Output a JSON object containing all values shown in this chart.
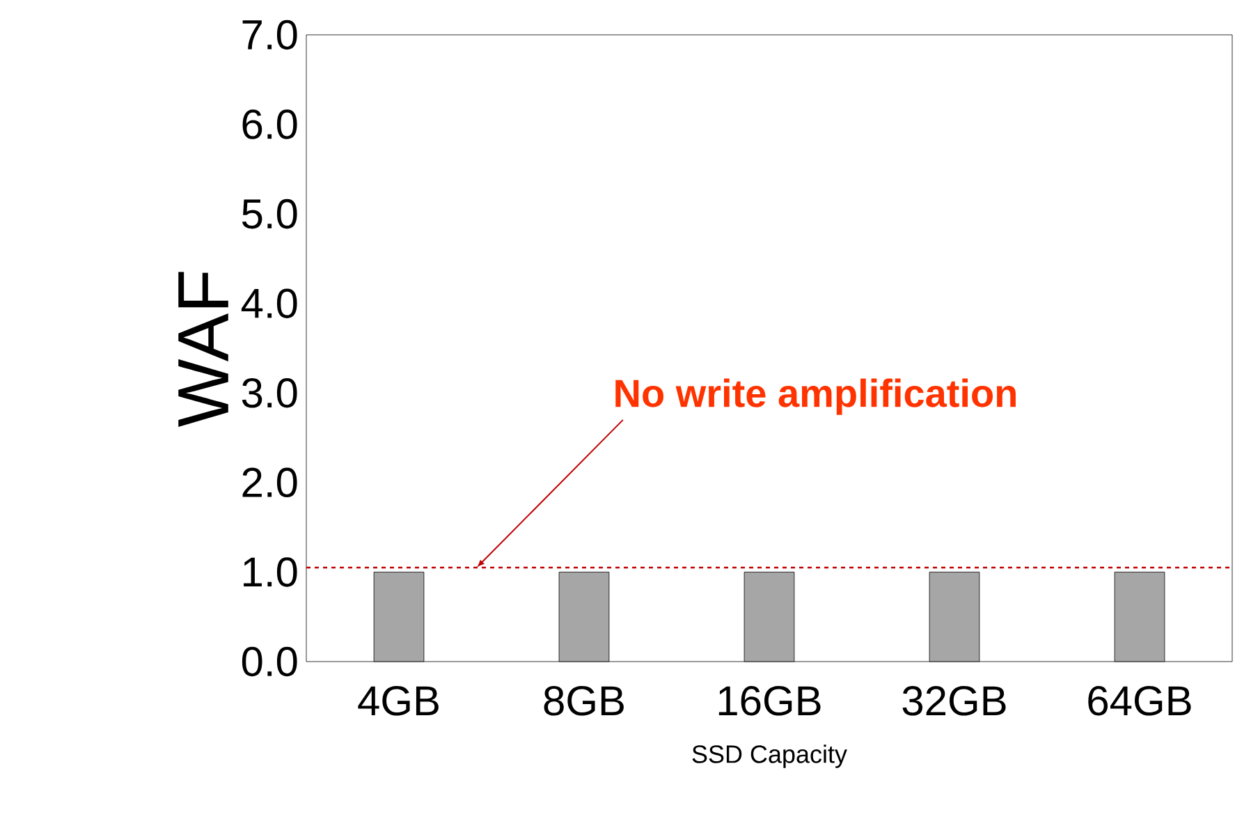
{
  "chart_data": {
    "type": "bar",
    "ylabel": "WAF",
    "xlabel": "SSD Capacity",
    "categories": [
      "4GB",
      "8GB",
      "16GB",
      "32GB",
      "64GB"
    ],
    "values": [
      1.0,
      1.0,
      1.0,
      1.0,
      1.0
    ],
    "color": "#a6a6a6",
    "ylim": [
      0,
      7
    ],
    "yticks": [
      {
        "value": 0,
        "label": "0.0"
      },
      {
        "value": 1,
        "label": "1.0"
      },
      {
        "value": 2,
        "label": "2.0"
      },
      {
        "value": 3,
        "label": "3.0"
      },
      {
        "value": 4,
        "label": "4.0"
      },
      {
        "value": 5,
        "label": "5.0"
      },
      {
        "value": 6,
        "label": "6.0"
      },
      {
        "value": 7,
        "label": "7.0"
      }
    ],
    "ref_lines": [
      {
        "axis": "y",
        "value": 1.05,
        "color": "#c00000",
        "line_style": "dashed",
        "label": "No write amplification"
      }
    ],
    "grid": false
  }
}
